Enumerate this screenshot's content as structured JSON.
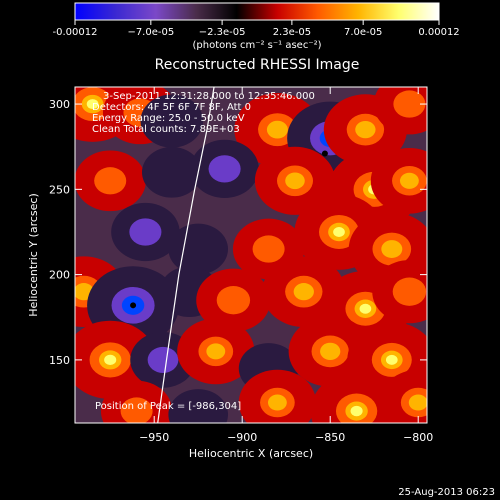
{
  "chart_data": {
    "type": "heatmap",
    "title": "Reconstructed RHESSI Image",
    "xlabel": "Heliocentric X (arcsec)",
    "ylabel": "Heliocentric Y (arcsec)",
    "xlim": [
      -995,
      -795
    ],
    "ylim": [
      113,
      310
    ],
    "x_ticks": [
      -950,
      -900,
      -850,
      -800
    ],
    "x_tick_labels": [
      "−950",
      "−900",
      "−850",
      "−800"
    ],
    "y_ticks": [
      150,
      200,
      250,
      300
    ],
    "y_tick_labels": [
      "150",
      "200",
      "250",
      "300"
    ],
    "colorbar": {
      "min": -0.00012,
      "max": 0.00012,
      "ticks": [
        -0.00012,
        -7e-05,
        -2.3e-05,
        2.3e-05,
        7e-05,
        0.00012
      ],
      "tick_labels": [
        "-0.00012",
        "−7.0e-05",
        "−2.3e-05",
        "2.3e-05",
        "7.0e-05",
        "0.00012"
      ],
      "unit_label": "(photons cm⁻² s⁻¹ asec⁻²)",
      "colors": [
        "#0000ff",
        "#3a28d2",
        "#7b48c8",
        "#4a2c4a",
        "#000000",
        "#c80000",
        "#ff5a00",
        "#ffb400",
        "#ffff6e",
        "#ffffff"
      ]
    },
    "annotations": [
      "3-Sep-2011 12:31:28.000 to 12:35:46.000",
      "Detectors: 4F 5F 6F 7F 8F, Att 0",
      "Energy Range: 25.0 - 50.0 keV",
      "Clean     Total counts: 7.89E+03"
    ],
    "peak_label": "Position of Peak = [-986,304]",
    "limb_curve": [
      [
        -948,
        113
      ],
      [
        -943,
        150
      ],
      [
        -936,
        200
      ],
      [
        -927,
        250
      ],
      [
        -920,
        285
      ],
      [
        -916,
        310
      ]
    ],
    "markers": [
      [
        -962,
        182
      ],
      [
        -853,
        271
      ]
    ],
    "blobs": [
      {
        "x": -985,
        "y": 300,
        "v": 0.8
      },
      {
        "x": -958,
        "y": 295,
        "v": 0.55
      },
      {
        "x": -940,
        "y": 290,
        "v": -0.35
      },
      {
        "x": -880,
        "y": 285,
        "v": 0.75
      },
      {
        "x": -850,
        "y": 280,
        "v": -0.75
      },
      {
        "x": -830,
        "y": 285,
        "v": 0.7
      },
      {
        "x": -805,
        "y": 300,
        "v": 0.5
      },
      {
        "x": -975,
        "y": 255,
        "v": 0.5
      },
      {
        "x": -940,
        "y": 260,
        "v": -0.3
      },
      {
        "x": -910,
        "y": 262,
        "v": -0.45
      },
      {
        "x": -870,
        "y": 255,
        "v": 0.65
      },
      {
        "x": -825,
        "y": 250,
        "v": 0.85
      },
      {
        "x": -805,
        "y": 255,
        "v": 0.6
      },
      {
        "x": -955,
        "y": 225,
        "v": -0.45
      },
      {
        "x": -925,
        "y": 215,
        "v": -0.3
      },
      {
        "x": -885,
        "y": 215,
        "v": 0.5
      },
      {
        "x": -845,
        "y": 225,
        "v": 0.8
      },
      {
        "x": -815,
        "y": 215,
        "v": 0.75
      },
      {
        "x": -990,
        "y": 190,
        "v": 0.7
      },
      {
        "x": -962,
        "y": 182,
        "v": -0.85
      },
      {
        "x": -930,
        "y": 190,
        "v": -0.3
      },
      {
        "x": -905,
        "y": 185,
        "v": 0.55
      },
      {
        "x": -865,
        "y": 190,
        "v": 0.7
      },
      {
        "x": -830,
        "y": 180,
        "v": 0.8
      },
      {
        "x": -805,
        "y": 190,
        "v": 0.55
      },
      {
        "x": -975,
        "y": 150,
        "v": 0.85
      },
      {
        "x": -945,
        "y": 150,
        "v": -0.4
      },
      {
        "x": -915,
        "y": 155,
        "v": 0.6
      },
      {
        "x": -885,
        "y": 145,
        "v": -0.3
      },
      {
        "x": -850,
        "y": 155,
        "v": 0.7
      },
      {
        "x": -815,
        "y": 150,
        "v": 0.8
      },
      {
        "x": -960,
        "y": 120,
        "v": 0.5
      },
      {
        "x": -925,
        "y": 118,
        "v": -0.3
      },
      {
        "x": -880,
        "y": 125,
        "v": 0.6
      },
      {
        "x": -835,
        "y": 120,
        "v": 0.85
      },
      {
        "x": -800,
        "y": 125,
        "v": 0.6
      }
    ]
  },
  "footer": {
    "timestamp": "25-Aug-2013 06:23"
  }
}
